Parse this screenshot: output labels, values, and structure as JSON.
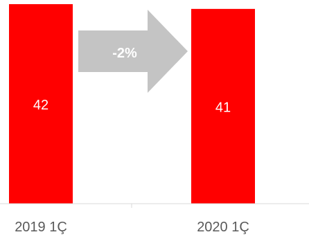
{
  "chart_data": {
    "type": "bar",
    "categories": [
      "2019 1Ç",
      "2020 1Ç"
    ],
    "values": [
      42,
      41
    ],
    "data_labels": [
      "42",
      "41"
    ],
    "ylim": [
      0,
      42
    ],
    "grid": false,
    "legend": "none",
    "bar_color": "#ff0000",
    "annotation": {
      "text": "-2%",
      "shape": "right-arrow",
      "color": "#c4c4c4"
    }
  }
}
